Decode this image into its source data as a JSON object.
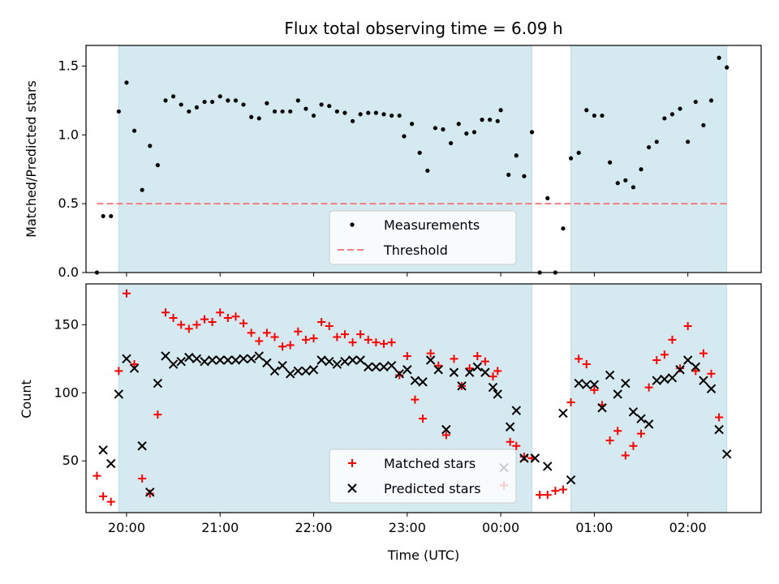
{
  "chart_data": [
    {
      "type": "scatter",
      "title": "Flux total observing time = 6.09 h",
      "ylabel": "Matched/Predicted stars",
      "xlabel": "",
      "xlim": [
        "19:34",
        "02:47"
      ],
      "ylim": [
        0,
        1.65
      ],
      "y_ticks": [
        "0.0",
        "0.5",
        "1.0",
        "1.5"
      ],
      "shaded_intervals": [
        [
          "19:55",
          "00:20"
        ],
        [
          "00:45",
          "02:25"
        ]
      ],
      "shade_color": "#d4eaf0",
      "legend_position": "lower-center",
      "threshold": {
        "name": "Threshold",
        "y": 0.5,
        "x_start": "19:41",
        "x_end": "02:25",
        "color": "#f08080",
        "style": "dashed"
      },
      "series": [
        {
          "name": "Measurements",
          "color": "#000000",
          "marker": "dot",
          "points": [
            [
              "19:41",
              0.0
            ],
            [
              "19:45",
              0.41
            ],
            [
              "19:50",
              0.41
            ],
            [
              "19:55",
              1.17
            ],
            [
              "20:00",
              1.38
            ],
            [
              "20:05",
              1.03
            ],
            [
              "20:10",
              0.6
            ],
            [
              "20:15",
              0.92
            ],
            [
              "20:20",
              0.78
            ],
            [
              "20:25",
              1.25
            ],
            [
              "20:30",
              1.28
            ],
            [
              "20:35",
              1.22
            ],
            [
              "20:40",
              1.17
            ],
            [
              "20:45",
              1.2
            ],
            [
              "20:50",
              1.24
            ],
            [
              "20:55",
              1.24
            ],
            [
              "21:00",
              1.28
            ],
            [
              "21:05",
              1.25
            ],
            [
              "21:10",
              1.25
            ],
            [
              "21:15",
              1.22
            ],
            [
              "21:20",
              1.13
            ],
            [
              "21:25",
              1.12
            ],
            [
              "21:30",
              1.23
            ],
            [
              "21:35",
              1.17
            ],
            [
              "21:40",
              1.17
            ],
            [
              "21:45",
              1.17
            ],
            [
              "21:50",
              1.25
            ],
            [
              "21:55",
              1.19
            ],
            [
              "22:00",
              1.14
            ],
            [
              "22:05",
              1.22
            ],
            [
              "22:10",
              1.21
            ],
            [
              "22:15",
              1.17
            ],
            [
              "22:20",
              1.16
            ],
            [
              "22:25",
              1.1
            ],
            [
              "22:30",
              1.15
            ],
            [
              "22:35",
              1.16
            ],
            [
              "22:40",
              1.16
            ],
            [
              "22:45",
              1.15
            ],
            [
              "22:50",
              1.14
            ],
            [
              "22:55",
              1.14
            ],
            [
              "22:58",
              0.99
            ],
            [
              "23:03",
              1.08
            ],
            [
              "23:08",
              0.87
            ],
            [
              "23:13",
              0.74
            ],
            [
              "23:18",
              1.05
            ],
            [
              "23:23",
              1.04
            ],
            [
              "23:28",
              0.94
            ],
            [
              "23:33",
              1.08
            ],
            [
              "23:38",
              1.01
            ],
            [
              "23:43",
              1.02
            ],
            [
              "23:48",
              1.11
            ],
            [
              "23:53",
              1.11
            ],
            [
              "23:58",
              1.1
            ],
            [
              "00:00",
              1.18
            ],
            [
              "00:05",
              0.71
            ],
            [
              "00:10",
              0.85
            ],
            [
              "00:15",
              0.7
            ],
            [
              "00:20",
              1.02
            ],
            [
              "00:25",
              0.0
            ],
            [
              "00:30",
              0.54
            ],
            [
              "00:35",
              0.0
            ],
            [
              "00:40",
              0.32
            ],
            [
              "00:45",
              0.83
            ],
            [
              "00:50",
              0.87
            ],
            [
              "00:55",
              1.18
            ],
            [
              "01:00",
              1.14
            ],
            [
              "01:05",
              1.14
            ],
            [
              "01:10",
              0.8
            ],
            [
              "01:15",
              0.65
            ],
            [
              "01:20",
              0.67
            ],
            [
              "01:25",
              0.62
            ],
            [
              "01:30",
              0.75
            ],
            [
              "01:35",
              0.91
            ],
            [
              "01:40",
              0.95
            ],
            [
              "01:45",
              1.12
            ],
            [
              "01:50",
              1.15
            ],
            [
              "01:55",
              1.19
            ],
            [
              "02:00",
              0.95
            ],
            [
              "02:05",
              1.24
            ],
            [
              "02:10",
              1.07
            ],
            [
              "02:15",
              1.25
            ],
            [
              "02:20",
              1.56
            ],
            [
              "02:25",
              1.49
            ]
          ]
        }
      ]
    },
    {
      "type": "scatter",
      "title": "",
      "ylabel": "Count",
      "xlabel": "Time (UTC)",
      "xlim": [
        "19:34",
        "02:47"
      ],
      "ylim": [
        12,
        180
      ],
      "x_ticks": [
        "20:00",
        "21:00",
        "22:00",
        "23:00",
        "00:00",
        "01:00",
        "02:00"
      ],
      "y_ticks": [
        "50",
        "100",
        "150"
      ],
      "shaded_intervals": [
        [
          "19:55",
          "00:20"
        ],
        [
          "00:45",
          "02:25"
        ]
      ],
      "shade_color": "#d4eaf0",
      "legend_position": "lower-center",
      "series": [
        {
          "name": "Matched stars",
          "color": "#ff0000",
          "marker": "plus",
          "points": [
            [
              "19:41",
              39
            ],
            [
              "19:45",
              24
            ],
            [
              "19:50",
              20
            ],
            [
              "19:55",
              116
            ],
            [
              "20:00",
              173
            ],
            [
              "20:05",
              121
            ],
            [
              "20:10",
              37
            ],
            [
              "20:15",
              26
            ],
            [
              "20:20",
              84
            ],
            [
              "20:25",
              159
            ],
            [
              "20:30",
              155
            ],
            [
              "20:35",
              150
            ],
            [
              "20:40",
              147
            ],
            [
              "20:45",
              150
            ],
            [
              "20:50",
              154
            ],
            [
              "20:55",
              152
            ],
            [
              "21:00",
              159
            ],
            [
              "21:05",
              155
            ],
            [
              "21:10",
              156
            ],
            [
              "21:15",
              151
            ],
            [
              "21:20",
              144
            ],
            [
              "21:25",
              138
            ],
            [
              "21:30",
              144
            ],
            [
              "21:35",
              141
            ],
            [
              "21:40",
              134
            ],
            [
              "21:45",
              135
            ],
            [
              "21:50",
              145
            ],
            [
              "21:55",
              139
            ],
            [
              "22:00",
              140
            ],
            [
              "22:05",
              152
            ],
            [
              "22:10",
              149
            ],
            [
              "22:15",
              141
            ],
            [
              "22:20",
              143
            ],
            [
              "22:25",
              137
            ],
            [
              "22:30",
              143
            ],
            [
              "22:35",
              139
            ],
            [
              "22:40",
              137
            ],
            [
              "22:45",
              136
            ],
            [
              "22:50",
              137
            ],
            [
              "22:55",
              113
            ],
            [
              "23:00",
              127
            ],
            [
              "23:05",
              95
            ],
            [
              "23:10",
              81
            ],
            [
              "23:15",
              129
            ],
            [
              "23:20",
              120
            ],
            [
              "23:25",
              69
            ],
            [
              "23:30",
              125
            ],
            [
              "23:35",
              105
            ],
            [
              "23:40",
              118
            ],
            [
              "23:45",
              127
            ],
            [
              "23:50",
              123
            ],
            [
              "23:55",
              112
            ],
            [
              "23:58",
              116
            ],
            [
              "00:02",
              32
            ],
            [
              "00:06",
              64
            ],
            [
              "00:10",
              61
            ],
            [
              "00:15",
              53
            ],
            [
              "00:20",
              52
            ],
            [
              "00:25",
              25
            ],
            [
              "00:30",
              25
            ],
            [
              "00:35",
              28
            ],
            [
              "00:40",
              29
            ],
            [
              "00:45",
              93
            ],
            [
              "00:50",
              125
            ],
            [
              "00:55",
              121
            ],
            [
              "01:00",
              102
            ],
            [
              "01:05",
              91
            ],
            [
              "01:10",
              65
            ],
            [
              "01:15",
              72
            ],
            [
              "01:20",
              54
            ],
            [
              "01:25",
              61
            ],
            [
              "01:30",
              70
            ],
            [
              "01:35",
              104
            ],
            [
              "01:40",
              124
            ],
            [
              "01:45",
              128
            ],
            [
              "01:50",
              139
            ],
            [
              "01:55",
              118
            ],
            [
              "02:00",
              149
            ],
            [
              "02:05",
              116
            ],
            [
              "02:10",
              129
            ],
            [
              "02:15",
              114
            ],
            [
              "02:20",
              82
            ]
          ]
        },
        {
          "name": "Predicted stars",
          "color": "#000000",
          "marker": "x",
          "points": [
            [
              "19:45",
              58
            ],
            [
              "19:50",
              48
            ],
            [
              "19:55",
              99
            ],
            [
              "20:00",
              125
            ],
            [
              "20:05",
              118
            ],
            [
              "20:10",
              61
            ],
            [
              "20:15",
              27
            ],
            [
              "20:20",
              107
            ],
            [
              "20:25",
              127
            ],
            [
              "20:30",
              121
            ],
            [
              "20:35",
              123
            ],
            [
              "20:40",
              126
            ],
            [
              "20:45",
              125
            ],
            [
              "20:50",
              123
            ],
            [
              "20:55",
              124
            ],
            [
              "21:00",
              124
            ],
            [
              "21:05",
              124
            ],
            [
              "21:10",
              124
            ],
            [
              "21:15",
              125
            ],
            [
              "21:20",
              125
            ],
            [
              "21:25",
              127
            ],
            [
              "21:30",
              122
            ],
            [
              "21:35",
              116
            ],
            [
              "21:40",
              120
            ],
            [
              "21:45",
              114
            ],
            [
              "21:50",
              116
            ],
            [
              "21:55",
              116
            ],
            [
              "22:00",
              117
            ],
            [
              "22:05",
              124
            ],
            [
              "22:10",
              123
            ],
            [
              "22:15",
              121
            ],
            [
              "22:20",
              123
            ],
            [
              "22:25",
              124
            ],
            [
              "22:30",
              124
            ],
            [
              "22:35",
              119
            ],
            [
              "22:40",
              119
            ],
            [
              "22:45",
              119
            ],
            [
              "22:50",
              120
            ],
            [
              "22:55",
              114
            ],
            [
              "23:00",
              117
            ],
            [
              "23:05",
              109
            ],
            [
              "23:10",
              108
            ],
            [
              "23:15",
              124
            ],
            [
              "23:20",
              117
            ],
            [
              "23:25",
              73
            ],
            [
              "23:30",
              115
            ],
            [
              "23:35",
              105
            ],
            [
              "23:40",
              115
            ],
            [
              "23:45",
              119
            ],
            [
              "23:50",
              115
            ],
            [
              "23:55",
              104
            ],
            [
              "23:58",
              99
            ],
            [
              "00:02",
              45
            ],
            [
              "00:06",
              75
            ],
            [
              "00:10",
              87
            ],
            [
              "00:15",
              52
            ],
            [
              "00:22",
              52
            ],
            [
              "00:30",
              46
            ],
            [
              "00:40",
              85
            ],
            [
              "00:45",
              36
            ],
            [
              "00:50",
              107
            ],
            [
              "00:55",
              106
            ],
            [
              "01:00",
              106
            ],
            [
              "01:05",
              89
            ],
            [
              "01:10",
              113
            ],
            [
              "01:15",
              99
            ],
            [
              "01:20",
              107
            ],
            [
              "01:25",
              86
            ],
            [
              "01:30",
              81
            ],
            [
              "01:35",
              77
            ],
            [
              "01:40",
              109
            ],
            [
              "01:45",
              110
            ],
            [
              "01:50",
              111
            ],
            [
              "01:55",
              117
            ],
            [
              "02:00",
              124
            ],
            [
              "02:05",
              119
            ],
            [
              "02:10",
              109
            ],
            [
              "02:15",
              103
            ],
            [
              "02:20",
              73
            ],
            [
              "02:25",
              55
            ]
          ]
        }
      ]
    }
  ]
}
